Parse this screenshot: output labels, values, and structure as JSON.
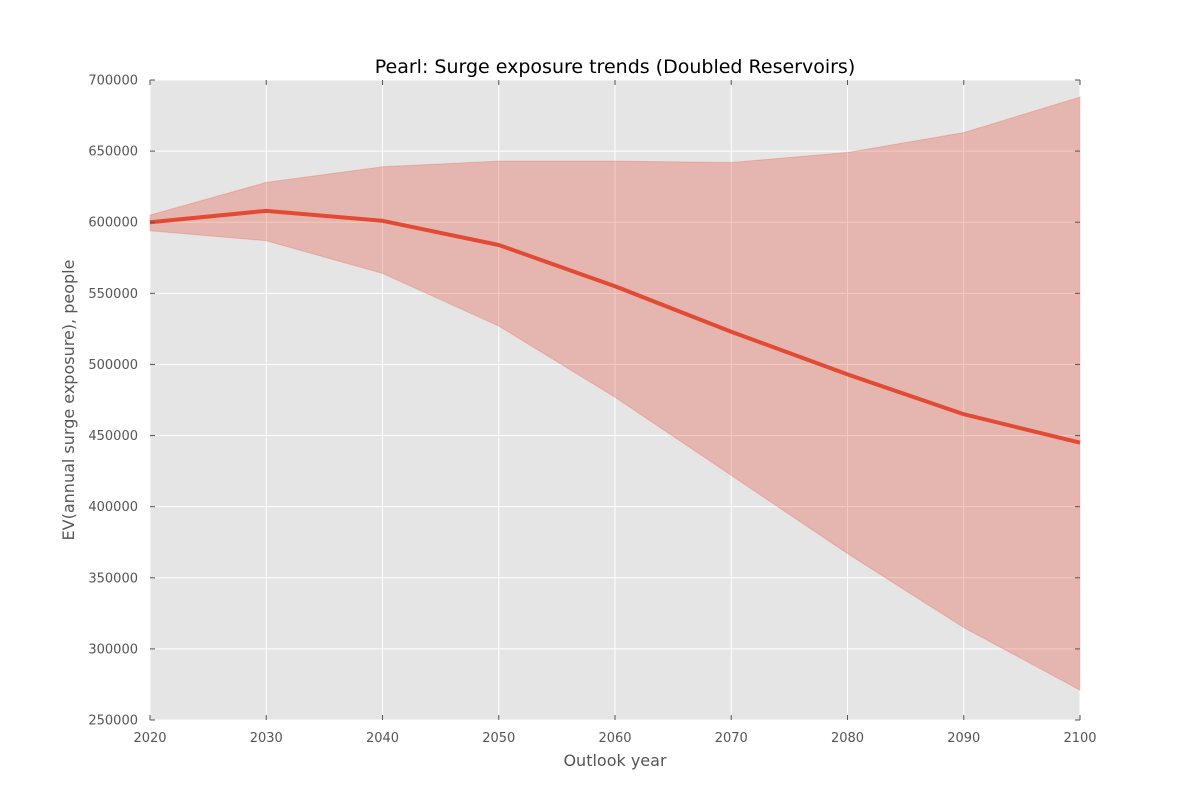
{
  "chart_data": {
    "type": "line",
    "title": "Pearl: Surge exposure trends (Doubled Reservoirs)",
    "xlabel": "Outlook year",
    "ylabel": "EV(annual surge exposure), people",
    "xlim": [
      2020,
      2100
    ],
    "ylim": [
      250000,
      700000
    ],
    "x_ticks": [
      "2020",
      "2030",
      "2040",
      "2050",
      "2060",
      "2070",
      "2080",
      "2090",
      "2100"
    ],
    "y_ticks": [
      "250000",
      "300000",
      "350000",
      "400000",
      "450000",
      "500000",
      "550000",
      "600000",
      "650000",
      "700000"
    ],
    "grid": true,
    "x": [
      2020,
      2030,
      2040,
      2050,
      2060,
      2070,
      2080,
      2090,
      2100
    ],
    "series": [
      {
        "values": [
          600000,
          608000,
          601000,
          584000,
          555000,
          523000,
          493000,
          465000,
          445000
        ],
        "upper": [
          605000,
          628000,
          639000,
          643000,
          643000,
          642000,
          649000,
          663000,
          688000
        ],
        "lower": [
          594000,
          587000,
          564000,
          527000,
          477000,
          422000,
          367000,
          315000,
          271000
        ]
      }
    ],
    "colors": {
      "line": "#e24a33",
      "band": "#e24a33",
      "plot_background": "#e5e5e5",
      "grid": "#ffffff"
    }
  }
}
